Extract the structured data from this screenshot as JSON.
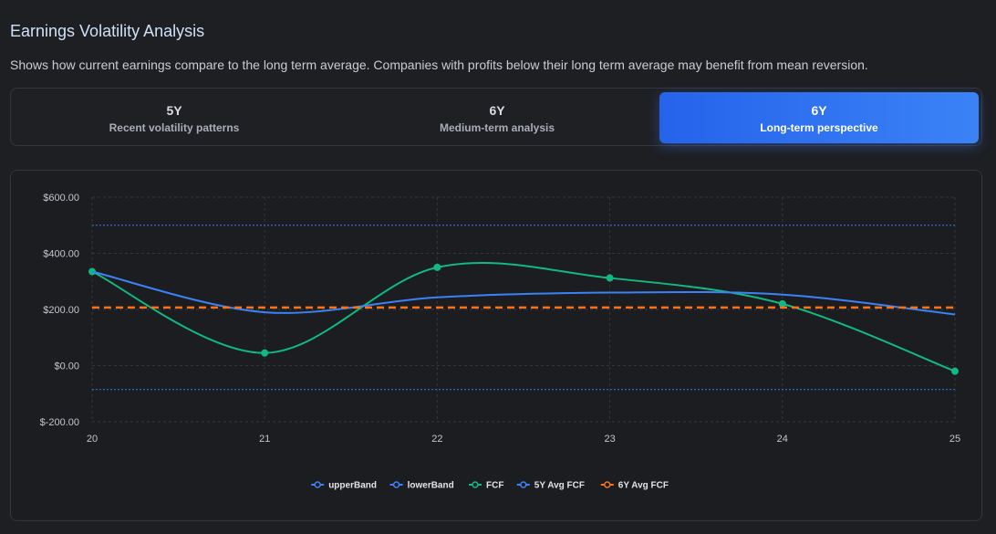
{
  "header": {
    "title": "Earnings Volatility Analysis",
    "description": "Shows how current earnings compare to the long term average. Companies with profits below their long term average may benefit from mean reversion."
  },
  "tabs": [
    {
      "label": "5Y",
      "sublabel": "Recent volatility patterns",
      "active": false
    },
    {
      "label": "6Y",
      "sublabel": "Medium-term analysis",
      "active": false
    },
    {
      "label": "6Y",
      "sublabel": "Long-term perspective",
      "active": true
    }
  ],
  "chart_data": {
    "type": "line",
    "x": [
      "20",
      "21",
      "22",
      "23",
      "24",
      "25"
    ],
    "ylim": [
      -200,
      600
    ],
    "yticks": [
      600,
      400,
      200,
      0,
      -200
    ],
    "ytick_labels": [
      "$600.00",
      "$400.00",
      "$200.00",
      "$0.00",
      "$-200.00"
    ],
    "grid": true,
    "legend_position": "bottom-center",
    "series": [
      {
        "name": "upperBand",
        "values": [
          500,
          500,
          500,
          500,
          500,
          500
        ],
        "color": "#3b82f6",
        "style": "dotted"
      },
      {
        "name": "lowerBand",
        "values": [
          -85,
          -85,
          -85,
          -85,
          -85,
          -85
        ],
        "color": "#3b82f6",
        "style": "dotted"
      },
      {
        "name": "FCF",
        "values": [
          335,
          45,
          350,
          312,
          220,
          -20
        ],
        "color": "#10b981",
        "style": "solid",
        "markers": true
      },
      {
        "name": "5Y Avg FCF",
        "values": [
          335,
          190,
          243,
          260,
          253,
          182
        ],
        "color": "#3b82f6",
        "style": "solid"
      },
      {
        "name": "6Y Avg FCF",
        "values": [
          207,
          207,
          207,
          207,
          207,
          207
        ],
        "color": "#f97316",
        "style": "dashed"
      }
    ]
  }
}
